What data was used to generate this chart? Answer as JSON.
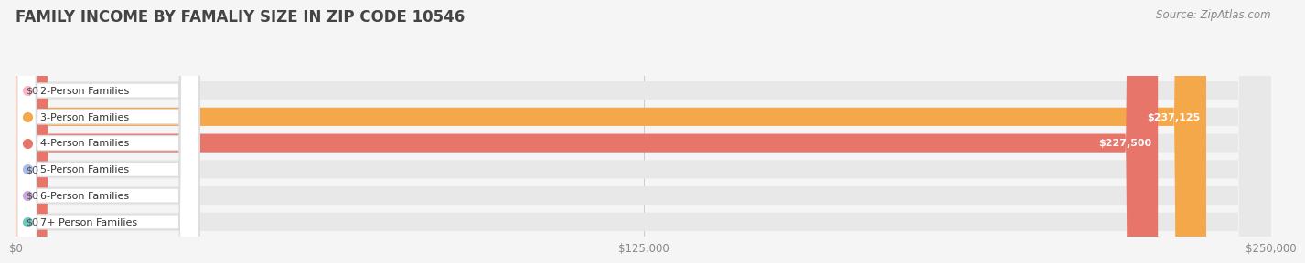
{
  "title": "FAMILY INCOME BY FAMALIY SIZE IN ZIP CODE 10546",
  "source": "Source: ZipAtlas.com",
  "categories": [
    "2-Person Families",
    "3-Person Families",
    "4-Person Families",
    "5-Person Families",
    "6-Person Families",
    "7+ Person Families"
  ],
  "values": [
    0,
    237125,
    227500,
    0,
    0,
    0
  ],
  "bar_colors": [
    "#f7b8c8",
    "#f5a84a",
    "#e8756a",
    "#aabde8",
    "#c8a8d8",
    "#72c8c0"
  ],
  "value_labels": [
    "$0",
    "$237,125",
    "$227,500",
    "$0",
    "$0",
    "$0"
  ],
  "value_label_inside": [
    false,
    true,
    true,
    false,
    false,
    false
  ],
  "xlim": [
    0,
    250000
  ],
  "xticks": [
    0,
    125000,
    250000
  ],
  "xtick_labels": [
    "$0",
    "$125,000",
    "$250,000"
  ],
  "background_color": "#f5f5f5",
  "bar_bg_color": "#e8e8e8",
  "title_fontsize": 12,
  "source_fontsize": 8.5,
  "label_fontsize": 8,
  "value_fontsize": 8
}
